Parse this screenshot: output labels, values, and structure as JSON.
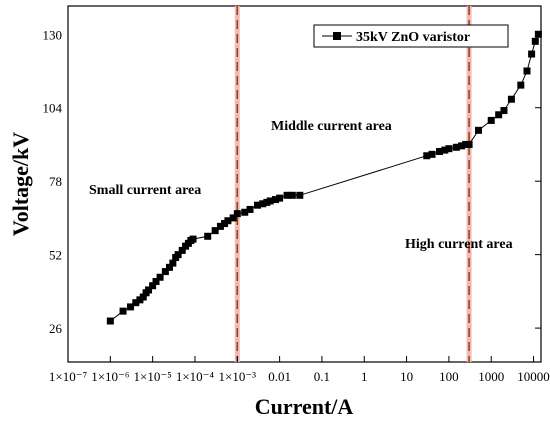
{
  "chart_data": {
    "type": "scatter",
    "title": "",
    "xlabel": "Current/A",
    "ylabel": "Voltage/kV",
    "xscale": "log",
    "xlim": [
      1e-07,
      15000
    ],
    "ylim": [
      14,
      140
    ],
    "grid": false,
    "legend_position": "top-right",
    "x_tick_labels": [
      "1×10⁻⁷",
      "1×10⁻⁶",
      "1×10⁻⁵",
      "1×10⁻⁴",
      "1×10⁻³",
      "0.01",
      "0.1",
      "1",
      "10",
      "100",
      "1000",
      "10000"
    ],
    "y_tick_labels": [
      "26",
      "52",
      "78",
      "104",
      "130"
    ],
    "y_ticks": [
      26,
      52,
      78,
      104,
      130
    ],
    "region_boundaries": [
      0.001,
      300
    ],
    "annotations": [
      "Small current area",
      "Middle current area",
      "High current area"
    ],
    "series": [
      {
        "name": "35kV ZnO varistor",
        "x": [
          1e-06,
          2e-06,
          3e-06,
          4e-06,
          5e-06,
          6e-06,
          7e-06,
          8e-06,
          1e-05,
          1.2e-05,
          1.5e-05,
          2e-05,
          2.5e-05,
          3e-05,
          3.5e-05,
          4e-05,
          5e-05,
          6e-05,
          7e-05,
          8e-05,
          9e-05,
          0.0002,
          0.0003,
          0.0004,
          0.0005,
          0.0006,
          0.0008,
          0.001,
          0.0015,
          0.002,
          0.003,
          0.004,
          0.005,
          0.006,
          0.008,
          0.01,
          0.015,
          0.02,
          0.03,
          30,
          40,
          60,
          80,
          100,
          150,
          200,
          250,
          300,
          500,
          1000,
          1500,
          2000,
          3000,
          5000,
          7000,
          9000,
          11000,
          13000
        ],
        "y": [
          28.5,
          32,
          33.5,
          35,
          36,
          37,
          38.5,
          39.5,
          41,
          42.5,
          44,
          46,
          47.5,
          49,
          51,
          52,
          53.5,
          55,
          56,
          57,
          57.5,
          58.5,
          60.5,
          62,
          63,
          64,
          65,
          66.5,
          67,
          68,
          69.5,
          70,
          70.5,
          71,
          71.5,
          72,
          73,
          73,
          73,
          87,
          87.5,
          88.5,
          89,
          89.5,
          90,
          90.5,
          91,
          91,
          96,
          99.5,
          101.5,
          103,
          107,
          112,
          117,
          123,
          127.5,
          130
        ]
      }
    ]
  }
}
